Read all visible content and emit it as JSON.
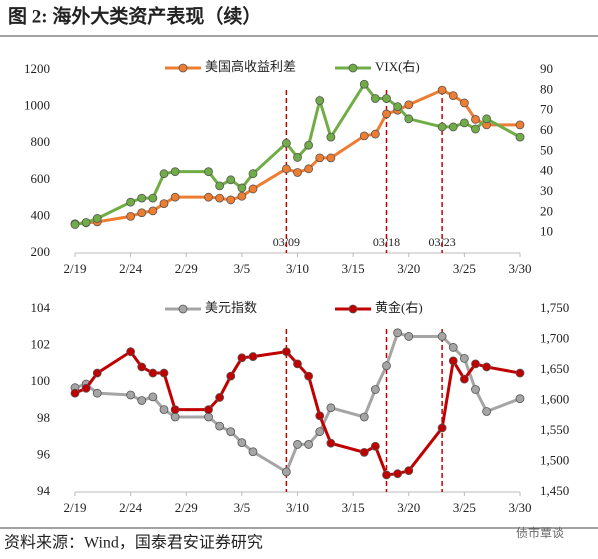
{
  "title": "图 2:  海外大类资产表现（续）",
  "source": "资料来源：Wind，国泰君安证券研究",
  "watermark": "债市覃谈",
  "chart_data": [
    {
      "type": "line",
      "x": [
        "2/19",
        "2/20",
        "2/21",
        "2/24",
        "2/25",
        "2/26",
        "2/27",
        "2/28",
        "3/2",
        "3/3",
        "3/4",
        "3/5",
        "3/6",
        "3/9",
        "3/10",
        "3/11",
        "3/12",
        "3/13",
        "3/16",
        "3/17",
        "3/18",
        "3/19",
        "3/20",
        "3/23",
        "3/24",
        "3/25",
        "3/26",
        "3/27",
        "3/30"
      ],
      "xlim": [
        "2/19",
        "3/30"
      ],
      "xticks": [
        "2/19",
        "2/24",
        "2/29",
        "3/5",
        "3/10",
        "3/15",
        "3/20",
        "3/25",
        "3/30"
      ],
      "ylim": [
        200,
        1200
      ],
      "yticks": [
        200,
        400,
        600,
        800,
        1000,
        1200
      ],
      "y2lim": [
        0,
        90
      ],
      "y2ticks": [
        10,
        20,
        30,
        40,
        50,
        60,
        70,
        80,
        90
      ],
      "legend": "top",
      "series": [
        {
          "name": "美国高收益利差",
          "color": "#ed7d31",
          "values": [
            360,
            365,
            370,
            400,
            420,
            430,
            470,
            505,
            505,
            500,
            490,
            510,
            550,
            660,
            640,
            660,
            720,
            720,
            840,
            850,
            960,
            980,
            1010,
            1090,
            1060,
            1020,
            930,
            900,
            900
          ]
        },
        {
          "name": "VIX(右)",
          "color": "#70ad47",
          "axis": "y2",
          "values": [
            14,
            15,
            17,
            25,
            27,
            27,
            39,
            40,
            40,
            33,
            36,
            32,
            39,
            54,
            47,
            53,
            75,
            57,
            83,
            76,
            76,
            72,
            66,
            62,
            62,
            64,
            61,
            66,
            57
          ]
        }
      ],
      "annotations": [
        {
          "x": "3/9",
          "label": "03/09"
        },
        {
          "x": "3/18",
          "label": "03/18"
        },
        {
          "x": "3/23",
          "label": "03/23"
        }
      ]
    },
    {
      "type": "line",
      "x": [
        "2/19",
        "2/20",
        "2/21",
        "2/24",
        "2/25",
        "2/26",
        "2/27",
        "2/28",
        "3/2",
        "3/3",
        "3/4",
        "3/5",
        "3/6",
        "3/9",
        "3/10",
        "3/11",
        "3/12",
        "3/13",
        "3/16",
        "3/17",
        "3/18",
        "3/19",
        "3/20",
        "3/23",
        "3/24",
        "3/25",
        "3/26",
        "3/27",
        "3/30"
      ],
      "xlim": [
        "2/19",
        "3/30"
      ],
      "xticks": [
        "2/19",
        "2/24",
        "2/29",
        "3/5",
        "3/10",
        "3/15",
        "3/20",
        "3/25",
        "3/30"
      ],
      "ylim": [
        94,
        104
      ],
      "yticks": [
        94,
        96,
        98,
        100,
        102,
        104
      ],
      "y2lim": [
        1450,
        1750
      ],
      "y2ticks": [
        {
          "value": 1450,
          "label": "1,450"
        },
        {
          "value": 1500,
          "label": "1,500"
        },
        {
          "value": 1550,
          "label": "1,550"
        },
        {
          "value": 1600,
          "label": "1,600"
        },
        {
          "value": 1650,
          "label": "1,650"
        },
        {
          "value": 1700,
          "label": "1,700"
        },
        {
          "value": 1750,
          "label": "1,750"
        }
      ],
      "legend": "top",
      "series": [
        {
          "name": "美元指数",
          "color": "#a5a5a5",
          "values": [
            99.7,
            99.9,
            99.4,
            99.3,
            99.0,
            99.2,
            98.5,
            98.1,
            98.1,
            97.6,
            97.3,
            96.7,
            96.2,
            95.1,
            96.6,
            96.6,
            97.3,
            98.6,
            98.1,
            99.6,
            100.9,
            102.7,
            102.5,
            102.5,
            101.9,
            101.3,
            99.6,
            98.4,
            99.1
          ]
        },
        {
          "name": "黄金(右)",
          "color": "#c00000",
          "axis": "y2",
          "values": [
            1612,
            1620,
            1645,
            1680,
            1655,
            1645,
            1645,
            1585,
            1585,
            1605,
            1640,
            1670,
            1672,
            1680,
            1660,
            1640,
            1575,
            1530,
            1515,
            1525,
            1478,
            1480,
            1485,
            1555,
            1665,
            1635,
            1660,
            1655,
            1645
          ]
        }
      ],
      "annotations": [
        {
          "x": "3/9"
        },
        {
          "x": "3/18"
        },
        {
          "x": "3/23"
        }
      ]
    }
  ]
}
